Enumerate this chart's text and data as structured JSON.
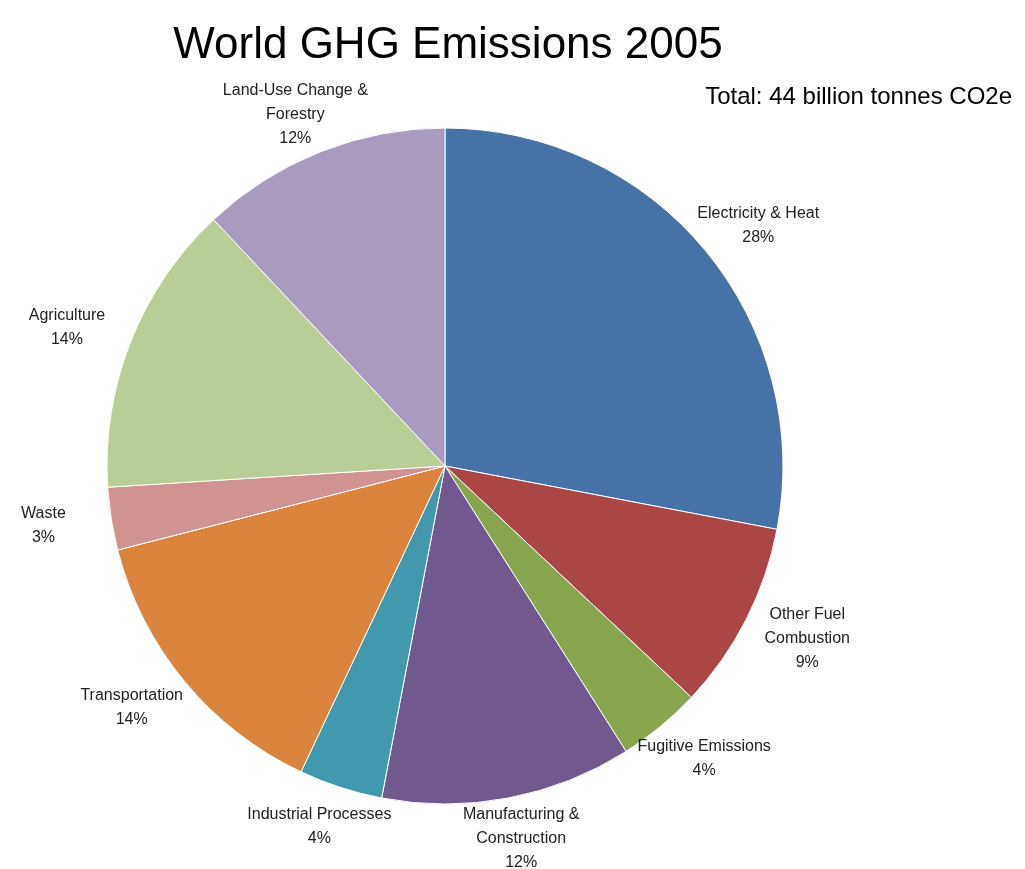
{
  "chart_data": {
    "type": "pie",
    "title": "World GHG Emissions 2005",
    "annotations": [
      "Total: 44 billion tonnes CO2e"
    ],
    "categories": [
      "Electricity & Heat",
      "Other Fuel Combustion",
      "Fugitive Emissions",
      "Manufacturing & Construction",
      "Industrial Processes",
      "Transportation",
      "Waste",
      "Agriculture",
      "Land-Use Change & Forestry"
    ],
    "values": [
      28,
      9,
      4,
      12,
      4,
      14,
      3,
      14,
      12
    ],
    "colors": [
      "#4572a7",
      "#aa4643",
      "#89a54e",
      "#71588f",
      "#4198af",
      "#db843d",
      "#d09392",
      "#b9cd96",
      "#a99bbd"
    ],
    "value_labels": [
      "28%",
      "9%",
      "4%",
      "12%",
      "4%",
      "14%",
      "3%",
      "14%",
      "12%"
    ]
  }
}
